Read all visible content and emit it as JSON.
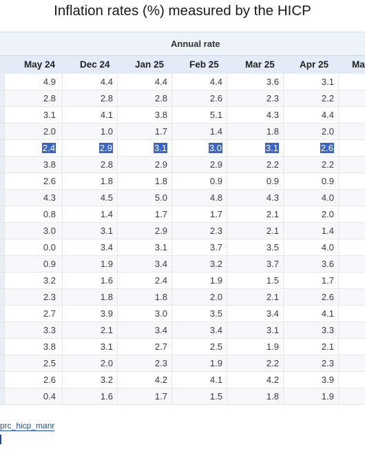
{
  "title": "Inflation rates (%) measured by the HICP",
  "group_header": "Annual rate",
  "columns": [
    "May 24",
    "Dec 24",
    "Jan 25",
    "Feb 25",
    "Mar 25",
    "Apr 25",
    "Ma"
  ],
  "rows": [
    {
      "values": [
        "4.9",
        "4.4",
        "4.4",
        "4.4",
        "3.6",
        "3.1",
        ""
      ],
      "selected": false
    },
    {
      "values": [
        "2.8",
        "2.8",
        "2.8",
        "2.6",
        "2.3",
        "2.2",
        ""
      ],
      "selected": false
    },
    {
      "values": [
        "3.1",
        "4.1",
        "3.8",
        "5.1",
        "4.3",
        "4.4",
        ""
      ],
      "selected": false
    },
    {
      "values": [
        "2.0",
        "1.0",
        "1.7",
        "1.4",
        "1.8",
        "2.0",
        ""
      ],
      "selected": false
    },
    {
      "values": [
        "2.4",
        "2.9",
        "3.1",
        "3.0",
        "3.1",
        "2.6",
        ""
      ],
      "selected": true
    },
    {
      "values": [
        "3.8",
        "2.8",
        "2.9",
        "2.9",
        "2.2",
        "2.2",
        ""
      ],
      "selected": false
    },
    {
      "values": [
        "2.6",
        "1.8",
        "1.8",
        "0.9",
        "0.9",
        "0.9",
        ""
      ],
      "selected": false
    },
    {
      "values": [
        "4.3",
        "4.5",
        "5.0",
        "4.8",
        "4.3",
        "4.0",
        ""
      ],
      "selected": false
    },
    {
      "values": [
        "0.8",
        "1.4",
        "1.7",
        "1.7",
        "2.1",
        "2.0",
        ""
      ],
      "selected": false
    },
    {
      "values": [
        "3.0",
        "3.1",
        "2.9",
        "2.3",
        "2.1",
        "1.4",
        ""
      ],
      "selected": false
    },
    {
      "values": [
        "0.0",
        "3.4",
        "3.1",
        "3.7",
        "3.5",
        "4.0",
        ""
      ],
      "selected": false
    },
    {
      "values": [
        "0.9",
        "1.9",
        "3.4",
        "3.2",
        "3.7",
        "3.6",
        ""
      ],
      "selected": false
    },
    {
      "values": [
        "3.2",
        "1.6",
        "2.4",
        "1.9",
        "1.5",
        "1.7",
        ""
      ],
      "selected": false
    },
    {
      "values": [
        "2.3",
        "1.8",
        "1.8",
        "2.0",
        "2.1",
        "2.6",
        ""
      ],
      "selected": false
    },
    {
      "values": [
        "2.7",
        "3.9",
        "3.0",
        "3.5",
        "3.4",
        "4.1",
        ""
      ],
      "selected": false
    },
    {
      "values": [
        "3.3",
        "2.1",
        "3.4",
        "3.4",
        "3.1",
        "3.3",
        ""
      ],
      "selected": false
    },
    {
      "values": [
        "3.8",
        "3.1",
        "2.7",
        "2.5",
        "1.9",
        "2.1",
        ""
      ],
      "selected": false
    },
    {
      "values": [
        "2.5",
        "2.0",
        "2.3",
        "1.9",
        "2.2",
        "2.3",
        ""
      ],
      "selected": false
    },
    {
      "values": [
        "2.6",
        "3.2",
        "4.2",
        "4.1",
        "4.2",
        "3.9",
        ""
      ],
      "selected": false
    },
    {
      "values": [
        "0.4",
        "1.6",
        "1.7",
        "1.5",
        "1.8",
        "1.9",
        ""
      ],
      "selected": false
    }
  ],
  "source_link": "prc_hicp_manr",
  "colors": {
    "selection": "#3b64c8",
    "link": "#1f4fa3",
    "header_bg": "#e3ecf6",
    "group_bg": "#eef3f9"
  }
}
